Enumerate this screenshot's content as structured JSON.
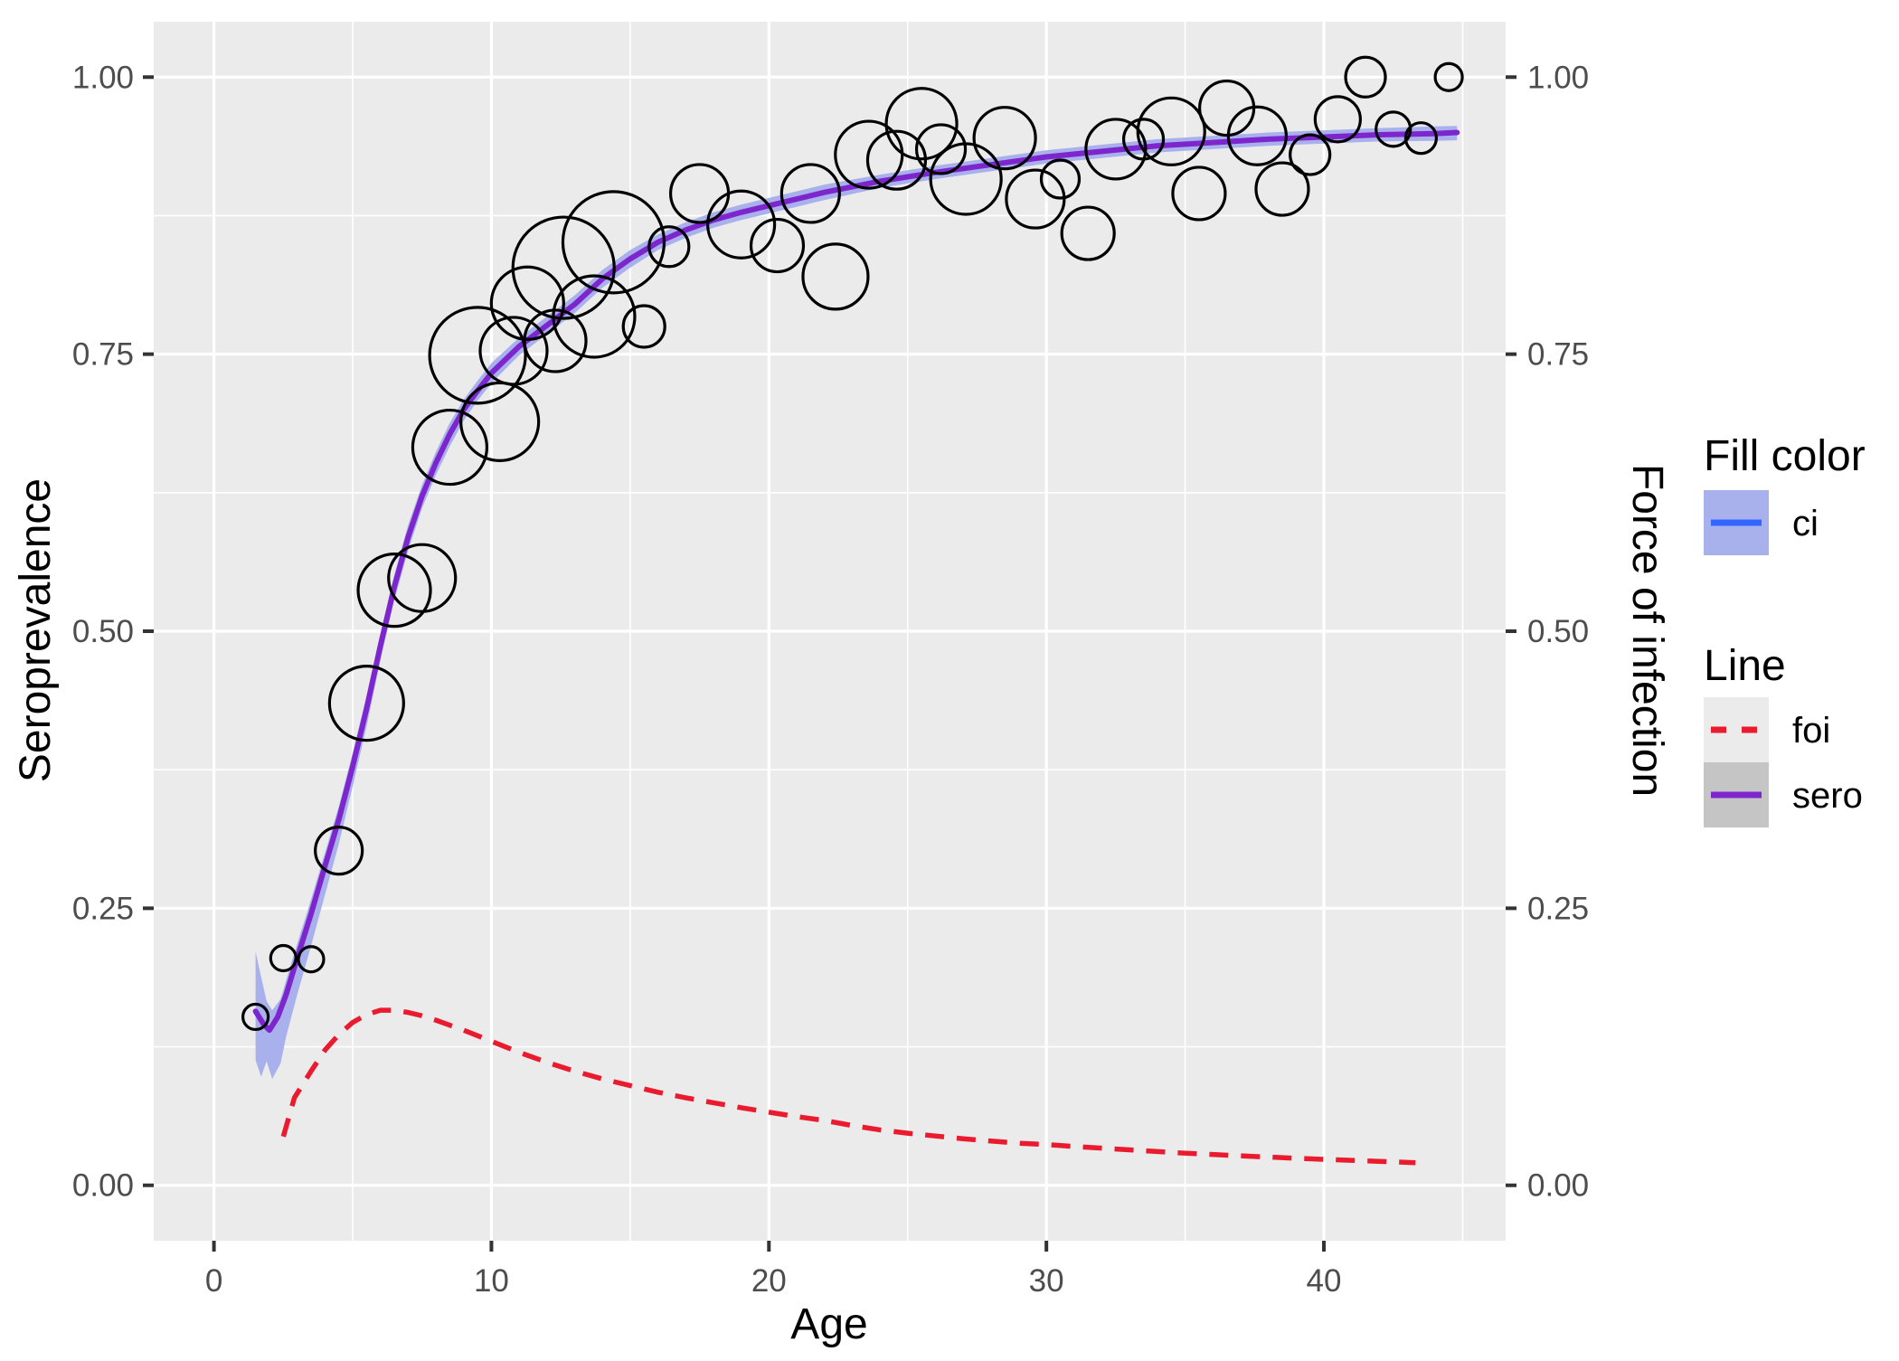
{
  "chart_data": {
    "type": "scatter+line+area",
    "title": "",
    "x_axis": {
      "label": "Age",
      "ticks": [
        0,
        10,
        20,
        30,
        40
      ],
      "tick_labels": [
        "0",
        "10",
        "20",
        "30",
        "40"
      ],
      "minor_ticks": [
        5,
        15,
        25,
        35,
        45
      ],
      "range": [
        -2.17,
        46.55
      ]
    },
    "y_axis_left": {
      "label": "Seroprevalence",
      "ticks": [
        0,
        0.25,
        0.5,
        0.75,
        1.0
      ],
      "tick_labels": [
        "0.00",
        "0.25",
        "0.50",
        "0.75",
        "1.00"
      ],
      "minor_ticks": [
        0.125,
        0.375,
        0.625,
        0.875
      ],
      "range": [
        -0.05,
        1.05
      ]
    },
    "y_axis_right": {
      "label": "Force of infection",
      "ticks": [
        0,
        0.25,
        0.5,
        0.75,
        1.0
      ],
      "tick_labels": [
        "0.00",
        "0.25",
        "0.50",
        "0.75",
        "1.00"
      ],
      "minor_ticks": [
        0.125,
        0.375,
        0.625,
        0.875
      ],
      "range": [
        -0.05,
        1.05
      ]
    },
    "grid": {
      "major": true,
      "minor": true
    },
    "series": [
      {
        "name": "ci",
        "type": "ribbon",
        "x": [
          1.5,
          1.7,
          1.9,
          2.1,
          2.4,
          2.6,
          3.0,
          3.5,
          4.0,
          4.5,
          5.0,
          5.5,
          6.0,
          6.5,
          7.0,
          7.5,
          8.0,
          8.5,
          9.0,
          9.5,
          10.0,
          11.0,
          12.0,
          13.0,
          14.0,
          15.0,
          16.0,
          17.0,
          18.0,
          19.0,
          20.0,
          22.0,
          24.0,
          26.0,
          28.0,
          30.0,
          32.0,
          34.0,
          36.0,
          38.0,
          40.0,
          42.0,
          44.0,
          44.8
        ],
        "upper": [
          0.211,
          0.188,
          0.166,
          0.158,
          0.168,
          0.185,
          0.218,
          0.258,
          0.3,
          0.342,
          0.39,
          0.442,
          0.498,
          0.551,
          0.596,
          0.632,
          0.662,
          0.688,
          0.709,
          0.726,
          0.742,
          0.765,
          0.784,
          0.803,
          0.826,
          0.844,
          0.858,
          0.869,
          0.878,
          0.885,
          0.891,
          0.903,
          0.912,
          0.92,
          0.927,
          0.934,
          0.939,
          0.944,
          0.947,
          0.95,
          0.952,
          0.954,
          0.9555,
          0.956
        ],
        "lower": [
          0.113,
          0.098,
          0.112,
          0.096,
          0.11,
          0.134,
          0.172,
          0.216,
          0.262,
          0.308,
          0.36,
          0.414,
          0.474,
          0.528,
          0.573,
          0.611,
          0.641,
          0.667,
          0.69,
          0.708,
          0.724,
          0.749,
          0.768,
          0.787,
          0.81,
          0.828,
          0.844,
          0.855,
          0.864,
          0.871,
          0.877,
          0.889,
          0.9,
          0.908,
          0.915,
          0.922,
          0.927,
          0.932,
          0.935,
          0.938,
          0.94,
          0.942,
          0.9425,
          0.943
        ]
      },
      {
        "name": "sero",
        "type": "line",
        "x": [
          1.5,
          1.8,
          2.0,
          2.3,
          2.6,
          3.0,
          3.5,
          4.0,
          4.5,
          5.0,
          5.5,
          6.0,
          6.5,
          7.0,
          7.5,
          8.0,
          8.5,
          9.0,
          9.5,
          10.0,
          11.0,
          12.0,
          13.0,
          14.0,
          15.0,
          16.0,
          17.0,
          18.0,
          19.0,
          20.0,
          22.0,
          24.0,
          26.0,
          28.0,
          30.0,
          32.0,
          34.0,
          36.0,
          38.0,
          40.0,
          42.0,
          44.0,
          44.8
        ],
        "y": [
          0.157,
          0.145,
          0.14,
          0.152,
          0.172,
          0.205,
          0.245,
          0.288,
          0.33,
          0.378,
          0.43,
          0.487,
          0.54,
          0.585,
          0.622,
          0.652,
          0.678,
          0.7,
          0.717,
          0.733,
          0.757,
          0.776,
          0.795,
          0.818,
          0.836,
          0.851,
          0.862,
          0.871,
          0.878,
          0.884,
          0.896,
          0.906,
          0.914,
          0.921,
          0.928,
          0.933,
          0.938,
          0.941,
          0.944,
          0.946,
          0.948,
          0.949,
          0.95
        ]
      },
      {
        "name": "foi",
        "type": "dashed-line",
        "x": [
          2.5,
          2.9,
          3.5,
          4.0,
          4.5,
          5.0,
          5.5,
          6.0,
          6.5,
          7.0,
          7.5,
          8.0,
          9.0,
          10.0,
          11.0,
          12.0,
          13.0,
          14.0,
          15.0,
          16.0,
          17.0,
          18.0,
          19.0,
          20.0,
          21.0,
          22.0,
          23.0,
          24.0,
          25.0,
          26.0,
          27.0,
          28.0,
          29.0,
          30.0,
          31.0,
          32.0,
          33.0,
          34.0,
          35.0,
          36.0,
          37.0,
          38.0,
          39.0,
          40.0,
          41.0,
          42.0,
          43.0,
          43.3
        ],
        "y": [
          0.044,
          0.079,
          0.103,
          0.122,
          0.136,
          0.147,
          0.154,
          0.158,
          0.158,
          0.156,
          0.153,
          0.149,
          0.14,
          0.13,
          0.12,
          0.111,
          0.103,
          0.096,
          0.09,
          0.084,
          0.079,
          0.0745,
          0.07,
          0.066,
          0.062,
          0.0585,
          0.054,
          0.05,
          0.047,
          0.0445,
          0.042,
          0.04,
          0.038,
          0.0368,
          0.035,
          0.0335,
          0.032,
          0.0305,
          0.029,
          0.0278,
          0.0266,
          0.0255,
          0.0244,
          0.0234,
          0.0225,
          0.0216,
          0.0207,
          0.0204
        ]
      },
      {
        "name": "observed-seroprevalence-bubbles",
        "type": "bubble",
        "points_format": [
          "age",
          "seroprevalence",
          "radius_px"
        ],
        "points": [
          [
            1.5,
            0.152,
            14
          ],
          [
            2.5,
            0.205,
            14
          ],
          [
            3.5,
            0.204,
            14
          ],
          [
            4.5,
            0.302,
            26
          ],
          [
            5.5,
            0.435,
            41
          ],
          [
            6.5,
            0.537,
            40
          ],
          [
            7.5,
            0.548,
            37
          ],
          [
            8.5,
            0.666,
            41
          ],
          [
            9.5,
            0.749,
            53
          ],
          [
            10.3,
            0.689,
            43
          ],
          [
            10.8,
            0.753,
            37
          ],
          [
            11.3,
            0.796,
            40
          ],
          [
            12.3,
            0.762,
            34
          ],
          [
            12.6,
            0.828,
            56
          ],
          [
            13.7,
            0.784,
            45
          ],
          [
            14.4,
            0.851,
            56
          ],
          [
            15.5,
            0.775,
            23
          ],
          [
            16.4,
            0.847,
            22
          ],
          [
            17.5,
            0.895,
            32
          ],
          [
            19.0,
            0.867,
            37
          ],
          [
            20.3,
            0.848,
            29
          ],
          [
            21.5,
            0.895,
            32
          ],
          [
            22.4,
            0.82,
            36
          ],
          [
            23.6,
            0.93,
            37
          ],
          [
            24.6,
            0.925,
            32
          ],
          [
            25.5,
            0.958,
            39
          ],
          [
            26.2,
            0.935,
            27
          ],
          [
            27.1,
            0.908,
            39
          ],
          [
            28.5,
            0.945,
            34
          ],
          [
            29.6,
            0.89,
            32
          ],
          [
            30.5,
            0.908,
            21
          ],
          [
            31.5,
            0.859,
            29
          ],
          [
            32.5,
            0.935,
            33
          ],
          [
            33.5,
            0.944,
            22
          ],
          [
            34.5,
            0.951,
            37
          ],
          [
            35.5,
            0.895,
            29
          ],
          [
            36.5,
            0.972,
            30
          ],
          [
            37.6,
            0.947,
            32
          ],
          [
            38.5,
            0.899,
            29
          ],
          [
            39.5,
            0.93,
            22
          ],
          [
            40.5,
            0.962,
            25
          ],
          [
            41.5,
            1.0,
            22
          ],
          [
            42.5,
            0.953,
            19
          ],
          [
            43.5,
            0.945,
            17
          ],
          [
            44.5,
            1.0,
            15
          ]
        ]
      }
    ],
    "legend": {
      "position": "right",
      "fill_group": {
        "title": "Fill color",
        "items": [
          {
            "label": "ci"
          }
        ]
      },
      "line_group": {
        "title": "Line",
        "items": [
          {
            "label": "foi"
          },
          {
            "label": "sero"
          }
        ]
      }
    }
  },
  "colors": {
    "panel_background": "#EBEBEB",
    "grid": "#FFFFFF",
    "tick_mark": "#333333",
    "tick_text": "#4D4D4D",
    "axis_title_text": "#000000",
    "sero_line": "#7D26CD",
    "foi_line": "#EA1B2E",
    "ci_ribbon": "#A8B1EB",
    "ci_legend_line": "#3366FF",
    "bubble_stroke": "#000000",
    "legend_key_light": "#EBEBEB",
    "legend_key_dark": "#C5C5C5"
  }
}
